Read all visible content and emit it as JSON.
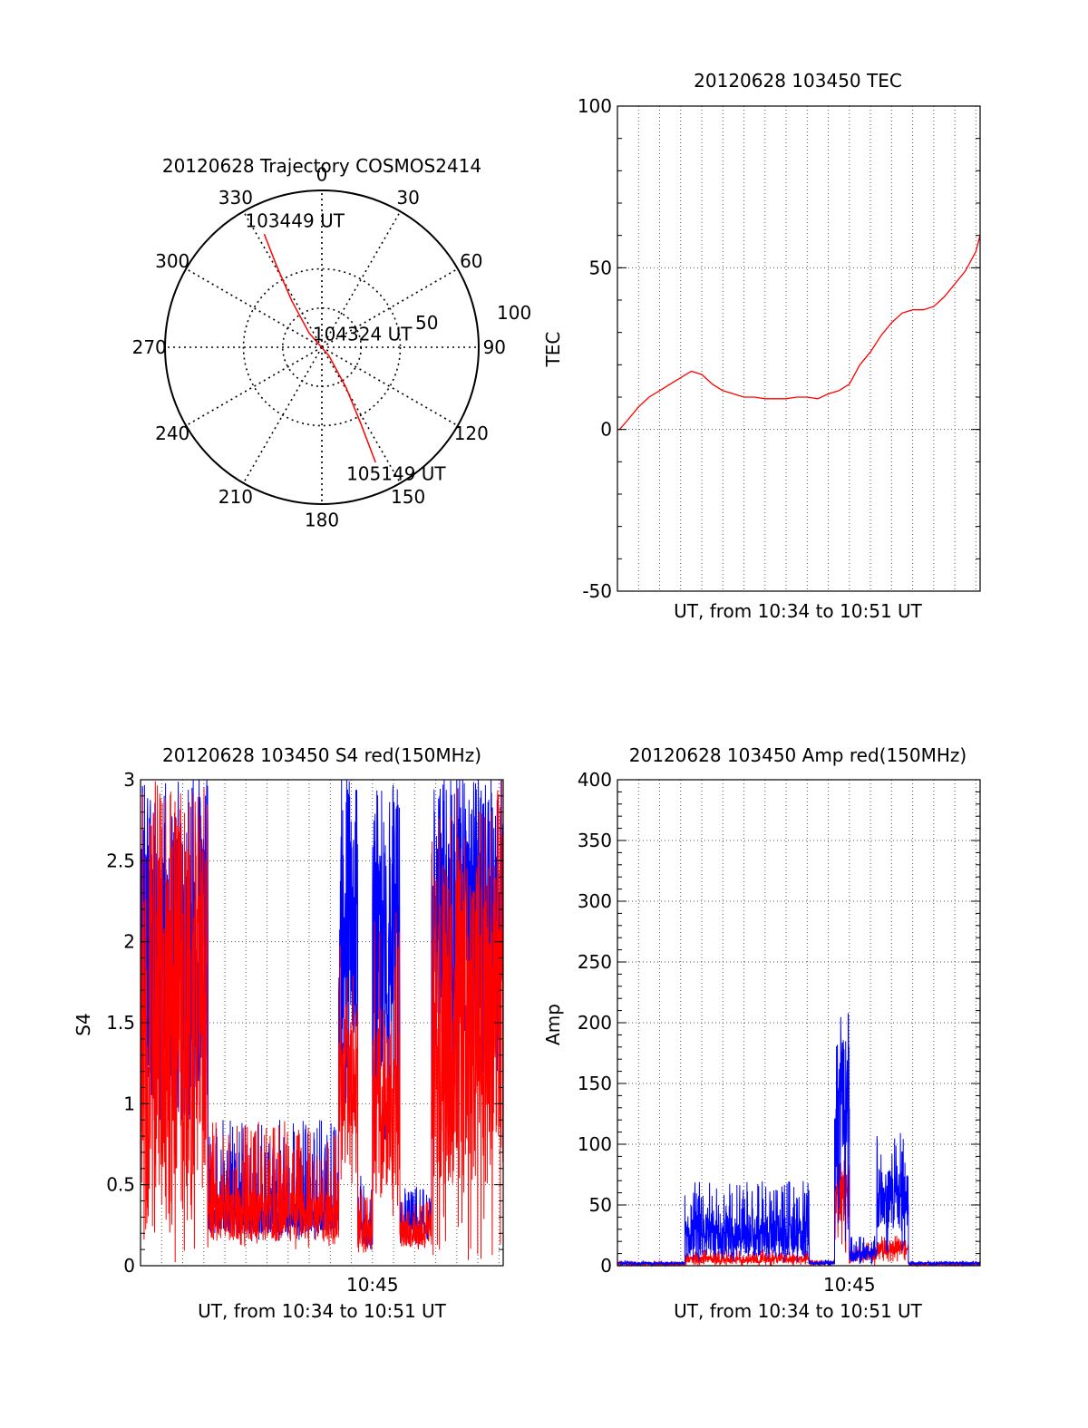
{
  "chart_data": [
    {
      "type": "polar",
      "title": "20120628 Trajectory COSMOS2414",
      "angle_ticks": [
        "0",
        "30",
        "60",
        "90",
        "120",
        "150",
        "180",
        "210",
        "240",
        "270",
        "300",
        "330"
      ],
      "angle_tick_values": [
        0,
        30,
        60,
        90,
        120,
        150,
        180,
        210,
        240,
        270,
        300,
        330
      ],
      "radial_ticks": [
        "50",
        "100"
      ],
      "radial_tick_values": [
        50,
        100
      ],
      "rlim": [
        0,
        100
      ],
      "grid": true,
      "series": [
        {
          "color": "#ff0000",
          "points": [
            {
              "az": 333,
              "r": 81
            },
            {
              "az": 331,
              "r": 60
            },
            {
              "az": 327,
              "r": 35
            },
            {
              "az": 318,
              "r": 12
            },
            {
              "az": 140,
              "r": 7
            },
            {
              "az": 149,
              "r": 30
            },
            {
              "az": 153,
              "r": 55
            },
            {
              "az": 155,
              "r": 81
            }
          ]
        }
      ],
      "annotations": [
        {
          "text": "103449 UT",
          "az": 350,
          "r": 82
        },
        {
          "text": "104324 UT",
          "az": 74,
          "r": 30
        },
        {
          "text": "105149 UT",
          "az": 148,
          "r": 95
        }
      ]
    },
    {
      "type": "line",
      "title": "20120628 103450 TEC",
      "xlabel": "UT, from 10:34 to 10:51 UT",
      "ylabel": "TEC",
      "xlim": [
        0,
        17.2
      ],
      "ylim": [
        -50,
        100
      ],
      "yticks": [
        -50,
        0,
        50,
        100
      ],
      "ytick_labels": [
        "-50",
        "0",
        "50",
        "100"
      ],
      "grid": true,
      "series": [
        {
          "color": "#ff0000",
          "x": [
            0.1,
            0.5,
            1.0,
            1.5,
            2.0,
            2.5,
            3.0,
            3.5,
            4.0,
            4.5,
            5.0,
            5.5,
            6.0,
            6.5,
            7.0,
            7.5,
            8.0,
            8.5,
            9.0,
            9.5,
            10.0,
            10.5,
            11.0,
            11.5,
            12.0,
            12.5,
            13.0,
            13.5,
            14.0,
            14.5,
            15.0,
            15.5,
            16.0,
            16.5,
            17.0,
            17.2
          ],
          "y": [
            0,
            3,
            7,
            10,
            12,
            14,
            16,
            18,
            17,
            14,
            12,
            11,
            10,
            10,
            9.5,
            9.5,
            9.5,
            10,
            10,
            9.5,
            11,
            12,
            14,
            20,
            24,
            29,
            33,
            36,
            37,
            37,
            38,
            41,
            45,
            49,
            55,
            60
          ]
        }
      ]
    },
    {
      "type": "line",
      "title": "20120628 103450 S4 red(150MHz)",
      "xlabel": "UT, from 10:34 to 10:51 UT",
      "ylabel": "S4",
      "xlim": [
        0,
        17.2
      ],
      "ylim": [
        0,
        3
      ],
      "yticks": [
        0,
        0.5,
        1,
        1.5,
        2,
        2.5,
        3
      ],
      "ytick_labels": [
        "0",
        "0.5",
        "1",
        "1.5",
        "2",
        "2.5",
        "3"
      ],
      "xticks": [
        11
      ],
      "xtick_labels": [
        "10:45"
      ],
      "grid": true,
      "series": [
        {
          "color": "#0000ff",
          "segments": [
            {
              "x0": 0.0,
              "x1": 3.2,
              "base": 1.95,
              "amp": 1.1,
              "smin": 0.9,
              "smax": 3.0
            },
            {
              "x0": 3.2,
              "x1": 9.4,
              "base": 0.28,
              "amp": 0.08,
              "smin": 0.15,
              "smax": 0.9
            },
            {
              "x0": 9.4,
              "x1": 10.3,
              "base": 2.2,
              "amp": 1.0,
              "smin": 1.0,
              "smax": 3.0
            },
            {
              "x0": 10.3,
              "x1": 11.0,
              "base": 0.2,
              "amp": 0.1,
              "smin": 0.1,
              "smax": 0.6
            },
            {
              "x0": 11.0,
              "x1": 12.3,
              "base": 2.0,
              "amp": 1.0,
              "smin": 0.7,
              "smax": 3.0
            },
            {
              "x0": 12.3,
              "x1": 13.8,
              "base": 0.22,
              "amp": 0.06,
              "smin": 0.12,
              "smax": 0.5
            },
            {
              "x0": 13.8,
              "x1": 17.2,
              "base": 2.3,
              "amp": 0.8,
              "smin": 1.1,
              "smax": 3.0
            }
          ]
        },
        {
          "color": "#ff0000",
          "segments": [
            {
              "x0": 0.0,
              "x1": 3.2,
              "base": 1.6,
              "amp": 1.4,
              "smin": 0.0,
              "smax": 3.0
            },
            {
              "x0": 3.2,
              "x1": 9.4,
              "base": 0.3,
              "amp": 0.15,
              "smin": 0.1,
              "smax": 0.9
            },
            {
              "x0": 9.4,
              "x1": 10.3,
              "base": 1.2,
              "amp": 0.4,
              "smin": 0.5,
              "smax": 2.0
            },
            {
              "x0": 10.3,
              "x1": 11.0,
              "base": 0.18,
              "amp": 0.1,
              "smin": 0.08,
              "smax": 0.5
            },
            {
              "x0": 11.0,
              "x1": 12.3,
              "base": 1.0,
              "amp": 0.6,
              "smin": 0.3,
              "smax": 2.2
            },
            {
              "x0": 12.3,
              "x1": 13.8,
              "base": 0.2,
              "amp": 0.08,
              "smin": 0.1,
              "smax": 0.4
            },
            {
              "x0": 13.8,
              "x1": 17.2,
              "base": 1.5,
              "amp": 1.0,
              "smin": 0.0,
              "smax": 3.0
            }
          ]
        }
      ]
    },
    {
      "type": "line",
      "title": "20120628 103450 Amp red(150MHz)",
      "xlabel": "UT, from 10:34 to 10:51 UT",
      "ylabel": "Amp",
      "xlim": [
        0,
        17.2
      ],
      "ylim": [
        0,
        400
      ],
      "yticks": [
        0,
        50,
        100,
        150,
        200,
        250,
        300,
        350,
        400
      ],
      "ytick_labels": [
        "0",
        "50",
        "100",
        "150",
        "200",
        "250",
        "300",
        "350",
        "400"
      ],
      "xticks": [
        11
      ],
      "xtick_labels": [
        "10:45"
      ],
      "grid": true,
      "series": [
        {
          "color": "#ff0000",
          "segments": [
            {
              "x0": 0.0,
              "x1": 3.2,
              "base": 1,
              "amp": 1,
              "smin": 0,
              "smax": 4
            },
            {
              "x0": 3.2,
              "x1": 9.1,
              "base": 5,
              "amp": 3,
              "smin": 0,
              "smax": 14
            },
            {
              "x0": 9.1,
              "x1": 10.3,
              "base": 2,
              "amp": 1,
              "smin": 0,
              "smax": 5
            },
            {
              "x0": 10.3,
              "x1": 11.0,
              "base": 60,
              "amp": 25,
              "smin": 5,
              "smax": 90
            },
            {
              "x0": 11.0,
              "x1": 12.3,
              "base": 8,
              "amp": 4,
              "smin": 0,
              "smax": 20
            },
            {
              "x0": 12.3,
              "x1": 13.8,
              "base": 15,
              "amp": 6,
              "smin": 2,
              "smax": 25
            },
            {
              "x0": 13.8,
              "x1": 17.2,
              "base": 1,
              "amp": 1,
              "smin": 0,
              "smax": 3
            }
          ]
        },
        {
          "color": "#0000ff",
          "segments": [
            {
              "x0": 0.0,
              "x1": 3.2,
              "base": 2,
              "amp": 1,
              "smin": 0,
              "smax": 4
            },
            {
              "x0": 3.2,
              "x1": 9.1,
              "base": 25,
              "amp": 18,
              "smin": 2,
              "smax": 70
            },
            {
              "x0": 9.1,
              "x1": 10.3,
              "base": 2,
              "amp": 1,
              "smin": 0,
              "smax": 5
            },
            {
              "x0": 10.3,
              "x1": 11.0,
              "base": 140,
              "amp": 50,
              "smin": 10,
              "smax": 215
            },
            {
              "x0": 11.0,
              "x1": 12.3,
              "base": 8,
              "amp": 5,
              "smin": 0,
              "smax": 25
            },
            {
              "x0": 12.3,
              "x1": 13.8,
              "base": 55,
              "amp": 25,
              "smin": 10,
              "smax": 110
            },
            {
              "x0": 13.8,
              "x1": 17.2,
              "base": 2,
              "amp": 1,
              "smin": 0,
              "smax": 4
            }
          ]
        }
      ]
    }
  ]
}
